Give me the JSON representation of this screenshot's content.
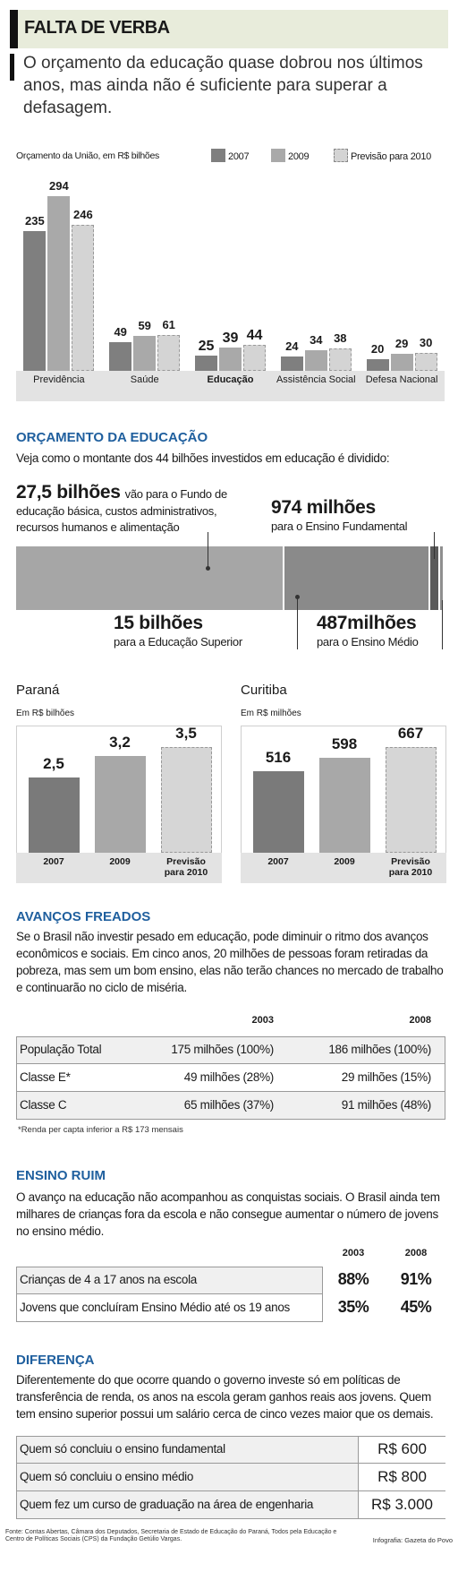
{
  "header": {
    "title": "FALTA DE VERBA",
    "subtitle": "O orçamento da educação quase dobrou nos últimos anos, mas ainda não é suficiente para superar a defasagem."
  },
  "chart_data": [
    {
      "type": "grouped-bar",
      "title": "Orçamento da União, em R$ bilhões",
      "categories": [
        "Previdência",
        "Saúde",
        "Educação",
        "Assistência Social",
        "Defesa Nacional"
      ],
      "series": [
        {
          "name": "2007",
          "color": "#7f7f7f",
          "values": [
            235,
            49,
            25,
            24,
            20
          ]
        },
        {
          "name": "2009",
          "color": "#a9a9a9",
          "values": [
            294,
            59,
            39,
            34,
            29
          ]
        },
        {
          "name": "Previsão para 2010",
          "color": "#d4d4d4",
          "values": [
            246,
            61,
            44,
            38,
            30
          ]
        }
      ]
    },
    {
      "type": "stacked-bar",
      "title": "ORÇAMENTO DA EDUCAÇÃO",
      "subtitle": "Veja como o montante dos 44 bilhões investidos em educação é dividido:",
      "values": [
        27.5,
        15,
        0.974,
        0.487
      ],
      "value_labels": [
        "27,5 bilhões",
        "15 bilhões",
        "974 milhões",
        "487milhões"
      ],
      "descriptions": [
        "vão para o Fundo de educação básica, custos administrativos, recursos humanos e alimentação",
        "para a Educação Superior",
        "para o Ensino Fundamental",
        "para o Ensino Médio"
      ],
      "colors": [
        "#a6a6a6",
        "#8a8a8a",
        "#5a5a5a",
        "#8f8f8f"
      ]
    },
    {
      "type": "bar",
      "title": "Paraná",
      "subtitle": "Em R$ bilhões",
      "categories": [
        "2007",
        "2009",
        "Previsão para 2010"
      ],
      "values": [
        2.5,
        3.2,
        3.5
      ],
      "value_labels": [
        "2,5",
        "3,2",
        "3,5"
      ],
      "colors": [
        "#7a7a7a",
        "#a8a8a8",
        "#d6d6d6"
      ]
    },
    {
      "type": "bar",
      "title": "Curitiba",
      "subtitle": "Em R$ milhões",
      "categories": [
        "2007",
        "2009",
        "Previsão para 2010"
      ],
      "values": [
        516,
        598,
        667
      ],
      "colors": [
        "#7a7a7a",
        "#a8a8a8",
        "#d6d6d6"
      ]
    }
  ],
  "avancos": {
    "title": "AVANÇOS FREADOS",
    "text": "Se o Brasil não investir pesado em educação, pode diminuir o ritmo dos avanços econômicos e sociais. Em cinco anos, 20 milhões de pessoas foram retiradas da pobreza, mas sem um bom ensino, elas não terão chances no mercado de trabalho e continuarão no ciclo de miséria.",
    "columns": [
      "2003",
      "2008"
    ],
    "rows": [
      [
        "População Total",
        "175 milhões (100%)",
        "186 milhões (100%)"
      ],
      [
        "Classe E*",
        "49 milhões (28%)",
        "29 milhões (15%)"
      ],
      [
        "Classe C",
        "65 milhões (37%)",
        "91 milhões (48%)"
      ]
    ],
    "note": "*Renda per capta inferior a R$ 173 mensais"
  },
  "ensino": {
    "title": "ENSINO RUIM",
    "text": "O avanço na educação não acompanhou as conquistas sociais. O Brasil ainda tem milhares de crianças fora da escola e não consegue aumentar o número de jovens no ensino médio.",
    "columns": [
      "2003",
      "2008"
    ],
    "rows": [
      [
        "Crianças de 4 a 17 anos na escola",
        "88%",
        "91%"
      ],
      [
        "Jovens que concluíram Ensino Médio até os 19 anos",
        "35%",
        "45%"
      ]
    ]
  },
  "diferenca": {
    "title": "DIFERENÇA",
    "text": "Diferentemente do que ocorre quando o governo investe só em políticas de transferência de renda, os anos na escola geram ganhos reais aos jovens. Quem tem ensino superior possui um salário cerca de cinco vezes maior que os demais.",
    "rows": [
      [
        "Quem só concluiu o ensino fundamental",
        "R$ 600"
      ],
      [
        "Quem só concluiu o ensino médio",
        "R$ 800"
      ],
      [
        "Quem fez um curso de graduação na área de engenharia",
        "R$ 3.000"
      ]
    ]
  },
  "footer": {
    "source": "Fonte: Contas Abertas, Câmara dos Deputados, Secretaria de Estado de Educação do Paraná, Todos pela Educação e Centro de Políticas Sociais (CPS) da Fundação Getúlio Vargas.",
    "credit": "Infografia: Gazeta do Povo"
  }
}
